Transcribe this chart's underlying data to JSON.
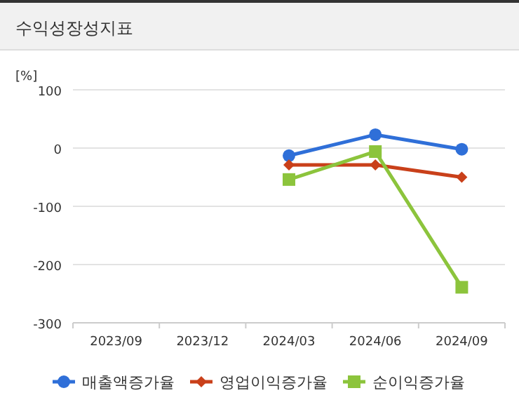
{
  "chart_data": {
    "type": "line",
    "title": "수익성장성지표",
    "ylabel": "[%]",
    "categories": [
      "2023/09",
      "2023/12",
      "2024/03",
      "2024/06",
      "2024/09"
    ],
    "series": [
      {
        "name": "매출액증가율",
        "color": "#2f6fd8",
        "marker": "circle",
        "values": [
          null,
          null,
          -13,
          23,
          -2
        ]
      },
      {
        "name": "영업이익증가율",
        "color": "#c9401a",
        "marker": "diamond",
        "values": [
          null,
          null,
          -29,
          -29,
          -50
        ]
      },
      {
        "name": "순이익증가율",
        "color": "#8cc43c",
        "marker": "square",
        "values": [
          null,
          null,
          -54,
          -6,
          -239
        ]
      }
    ],
    "ylim": [
      -300,
      100
    ],
    "yticks": [
      -300,
      -200,
      -100,
      0,
      100
    ],
    "grid": "y",
    "legend": "bottom"
  }
}
